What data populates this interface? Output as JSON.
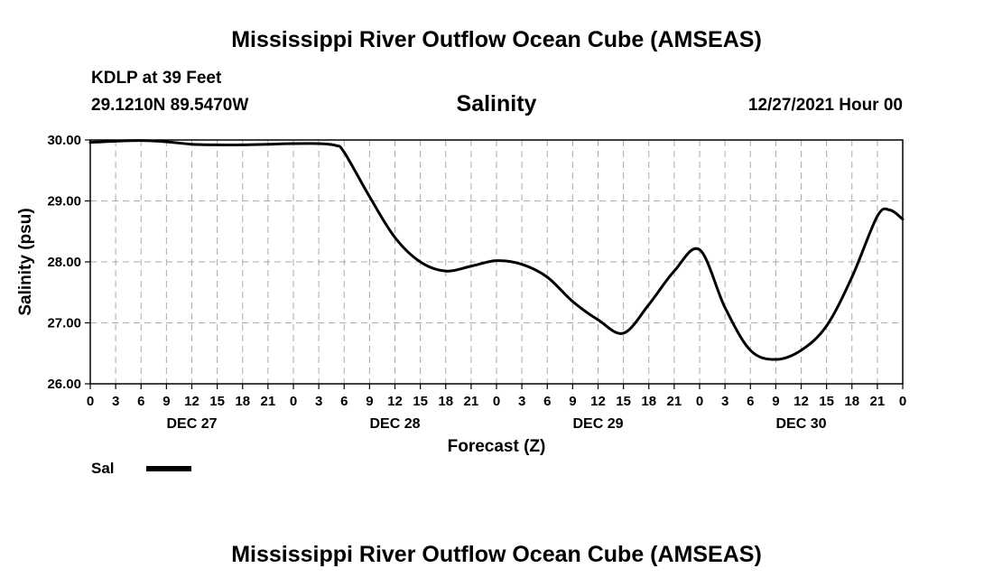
{
  "header": {
    "title": "Mississippi River Outflow Ocean Cube (AMSEAS)",
    "station": "KDLP at 39 Feet",
    "coords": "29.1210N  89.5470W",
    "subtitle": "Salinity",
    "datetime": "12/27/2021 Hour 00",
    "bottom_title": "Mississippi River Outflow Ocean Cube (AMSEAS)"
  },
  "legend": {
    "label": "Sal",
    "color": "#000000"
  },
  "chart_data": {
    "type": "line",
    "title": "Salinity",
    "xlabel": "Forecast (Z)",
    "ylabel": "Salinity (psu)",
    "xlim": [
      0,
      96
    ],
    "ylim": [
      26,
      30
    ],
    "grid": true,
    "xtick_positions": [
      0,
      3,
      6,
      9,
      12,
      15,
      18,
      21,
      24,
      27,
      30,
      33,
      36,
      39,
      42,
      45,
      48,
      51,
      54,
      57,
      60,
      63,
      66,
      69,
      72,
      75,
      78,
      81,
      84,
      87,
      90,
      93,
      96
    ],
    "xtick_labels": [
      "0",
      "3",
      "6",
      "9",
      "12",
      "15",
      "18",
      "21",
      "0",
      "3",
      "6",
      "9",
      "12",
      "15",
      "18",
      "21",
      "0",
      "3",
      "6",
      "9",
      "12",
      "15",
      "18",
      "21",
      "0",
      "3",
      "6",
      "9",
      "12",
      "15",
      "18",
      "21",
      "0"
    ],
    "date_labels": [
      {
        "x": 12,
        "text": "DEC 27"
      },
      {
        "x": 36,
        "text": "DEC 28"
      },
      {
        "x": 60,
        "text": "DEC 29"
      },
      {
        "x": 84,
        "text": "DEC 30"
      }
    ],
    "ytick_values": [
      26,
      27,
      28,
      29,
      30
    ],
    "ytick_labels": [
      "26.00",
      "27.00",
      "28.00",
      "29.00",
      "30.00"
    ],
    "series": [
      {
        "name": "Sal",
        "color": "#000000",
        "x": [
          0,
          3,
          6,
          9,
          12,
          15,
          18,
          21,
          24,
          27,
          29,
          30,
          33,
          36,
          39,
          42,
          45,
          48,
          51,
          54,
          57,
          60,
          63,
          66,
          69,
          72,
          75,
          78,
          81,
          84,
          87,
          90,
          93,
          94.5,
          96
        ],
        "y": [
          29.96,
          29.98,
          29.99,
          29.97,
          29.93,
          29.92,
          29.92,
          29.93,
          29.94,
          29.94,
          29.91,
          29.8,
          29.07,
          28.4,
          28.0,
          27.85,
          27.93,
          28.02,
          27.96,
          27.75,
          27.35,
          27.05,
          26.83,
          27.3,
          27.85,
          28.2,
          27.25,
          26.55,
          26.4,
          26.55,
          26.95,
          27.75,
          28.75,
          28.85,
          28.7
        ]
      }
    ]
  }
}
